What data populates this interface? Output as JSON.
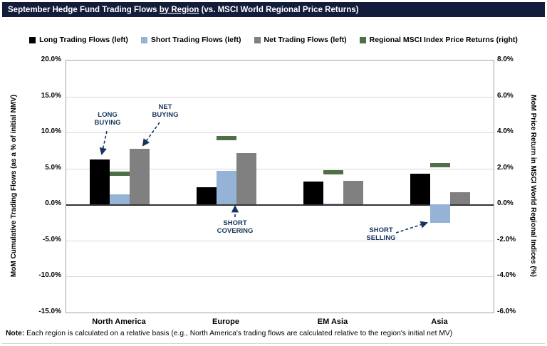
{
  "title_bar": {
    "prefix": "September Hedge Fund Trading Flows ",
    "underlined": "by Region",
    "suffix": " (vs. MSCI World Regional Price Returns)"
  },
  "legend": [
    {
      "label": "Long Trading Flows (left)",
      "color": "#000000"
    },
    {
      "label": "Short Trading Flows (left)",
      "color": "#95B3D7"
    },
    {
      "label": "Net Trading Flows (left)",
      "color": "#808080"
    },
    {
      "label": "Regional MSCI Index Price Returns (right)",
      "color": "#4F6F46"
    }
  ],
  "chart_data": {
    "type": "bar",
    "categories": [
      "North America",
      "Europe",
      "EM Asia",
      "Asia"
    ],
    "series": [
      {
        "name": "Long Trading Flows (left)",
        "axis": "left",
        "color": "#000000",
        "values": [
          6.3,
          2.4,
          3.2,
          4.3
        ]
      },
      {
        "name": "Short Trading Flows (left)",
        "axis": "left",
        "color": "#95B3D7",
        "values": [
          1.4,
          4.7,
          0.1,
          -2.5
        ]
      },
      {
        "name": "Net Trading Flows (left)",
        "axis": "left",
        "color": "#808080",
        "values": [
          7.7,
          7.1,
          3.3,
          1.7
        ]
      },
      {
        "name": "Regional MSCI Index Price Returns (right)",
        "axis": "right",
        "color": "#4F6F46",
        "marker": "dash",
        "values": [
          1.7,
          3.7,
          1.8,
          2.2
        ]
      }
    ],
    "left_axis": {
      "label": "MoM Cumulative Trading Flows (as a % of initial NMV)",
      "min": -15,
      "max": 20,
      "ticks": [
        "20.0%",
        "15.0%",
        "10.0%",
        "5.0%",
        "0.0%",
        "-5.0%",
        "-10.0%",
        "-15.0%"
      ]
    },
    "right_axis": {
      "label": "MoM Price Return in MSCI World Regional Indices (%)",
      "min": -6,
      "max": 8,
      "ticks": [
        "8.0%",
        "6.0%",
        "4.0%",
        "2.0%",
        "0.0%",
        "-2.0%",
        "-4.0%",
        "-6.0%"
      ]
    },
    "grid": true,
    "legend_position": "top",
    "annotations": [
      {
        "label": "LONG BUYING",
        "target": "North America long bar"
      },
      {
        "label": "NET BUYING",
        "target": "North America net bar"
      },
      {
        "label": "SHORT COVERING",
        "target": "Europe short bar"
      },
      {
        "label": "SHORT SELLING",
        "target": "Asia short bar"
      }
    ]
  },
  "note": {
    "label": "Note:",
    "text": " Each region is calculated on a relative basis (e.g., North America's trading flows are calculated relative to the region's initial net MV)"
  }
}
